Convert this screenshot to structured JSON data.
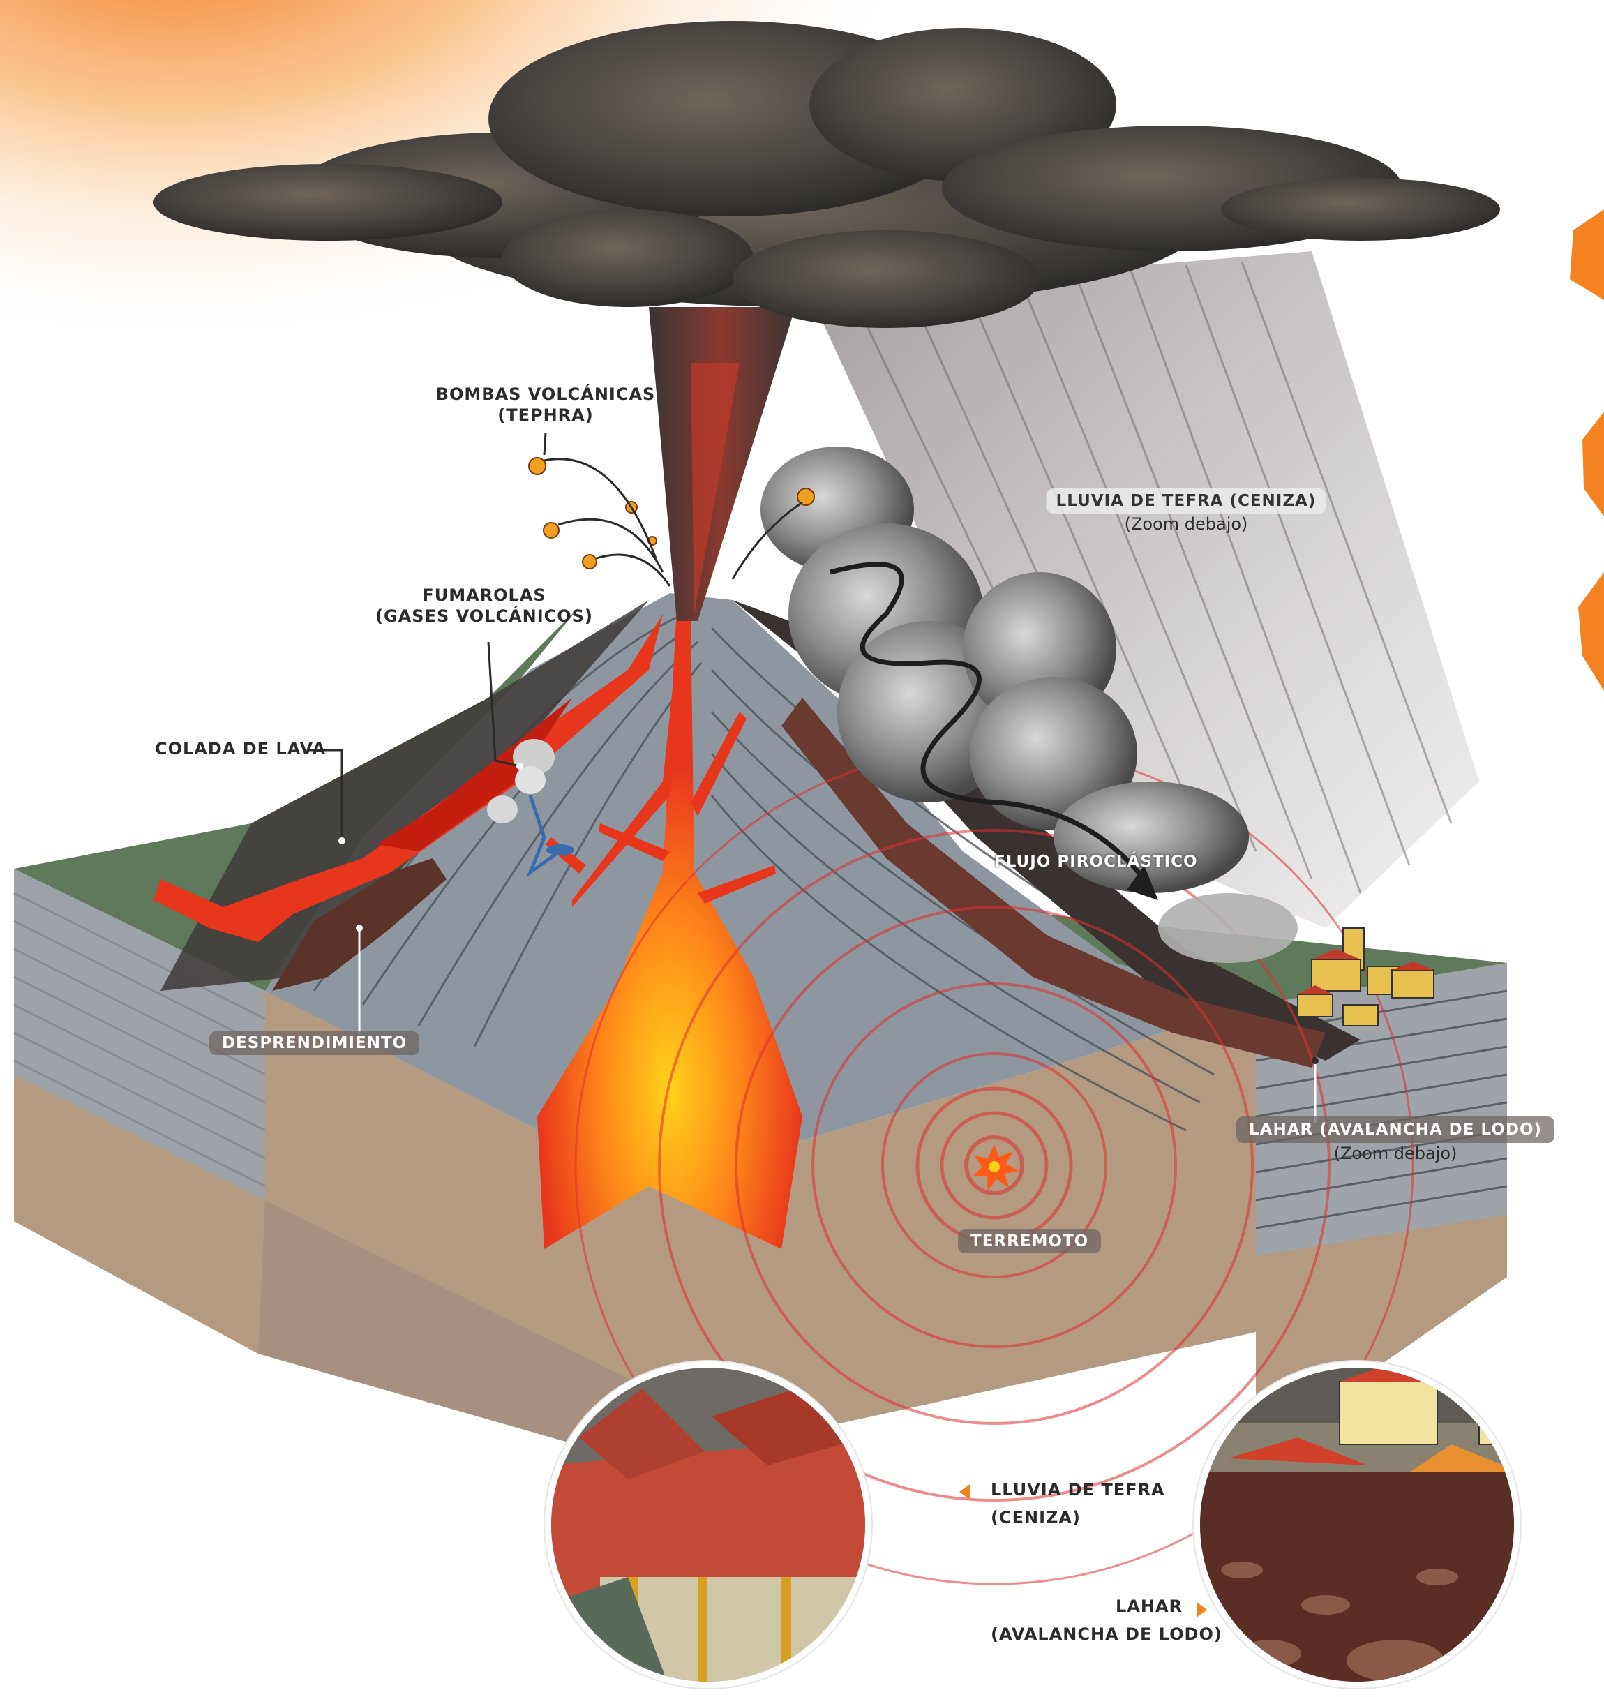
{
  "labels": {
    "bombas": {
      "line1": "BOMBAS VOLCÁNICAS",
      "line2": "(TEPHRA)"
    },
    "fumarolas": {
      "line1": "FUMAROLAS",
      "line2": "(GASES VOLCÁNICOS)"
    },
    "colada": "COLADA DE LAVA",
    "desprendimiento": "DESPRENDIMIENTO",
    "lluvia": {
      "line1": "LLUVIA DE TEFRA (CENIZA)",
      "line2": "(Zoom debajo)"
    },
    "flujo": "FLUJO PIROCLÁSTICO",
    "lahar": {
      "line1": "LAHAR (AVALANCHA DE LODO)",
      "line2": "(Zoom debajo)"
    },
    "terremoto": "TERREMOTO"
  },
  "captions": {
    "tefra": {
      "line1": "LLUVIA DE TEFRA",
      "line2": "(CENIZA)"
    },
    "lahar": {
      "line1": "LAHAR",
      "line2": "(AVALANCHA DE LODO)"
    }
  },
  "colors": {
    "lava": "#e8361c",
    "magma_core": "#ffb21a",
    "ash_cloud": "#4a4540",
    "sky_glow": "#f58220",
    "earthquake_rings": "#e03030",
    "grass": "#5e7a5a",
    "rock_layers": "#9aa2a8",
    "crust": "#b59a82"
  }
}
